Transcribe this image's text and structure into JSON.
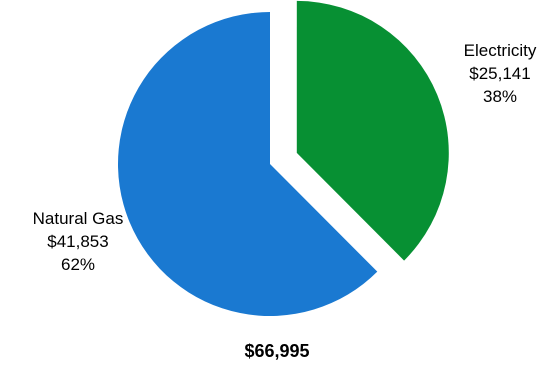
{
  "chart_data": {
    "type": "pie",
    "slices": [
      {
        "name": "Electricity",
        "value": 25141,
        "value_label": "$25,141",
        "percent": "38%",
        "color": "#079033",
        "exploded": true
      },
      {
        "name": "Natural Gas",
        "value": 41853,
        "value_label": "$41,853",
        "percent": "62%",
        "color": "#1a79d1",
        "exploded": false
      }
    ],
    "total": "$66,995"
  }
}
